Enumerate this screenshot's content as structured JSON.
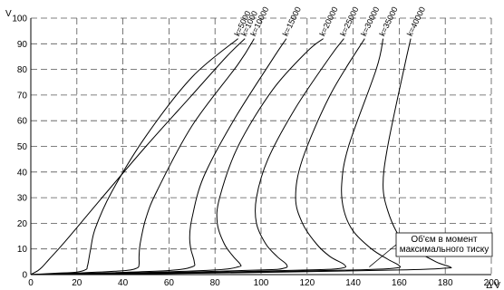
{
  "chart_data": {
    "type": "line",
    "xlabel": "Δ V",
    "ylabel": "V",
    "xlim": [
      0,
      200
    ],
    "ylim": [
      0,
      100
    ],
    "x_ticks": [
      0,
      20,
      40,
      60,
      80,
      100,
      120,
      140,
      160,
      180,
      200
    ],
    "y_ticks": [
      0,
      10,
      20,
      30,
      40,
      50,
      60,
      70,
      80,
      90,
      100
    ],
    "grid": true,
    "annotation": {
      "lines": [
        "Об'єм в момент",
        "максимального тиску"
      ],
      "target": {
        "x": 147,
        "y": 3
      }
    },
    "series": [
      {
        "name": "k=1000",
        "points": [
          [
            0,
            0
          ],
          [
            1,
            0.5
          ],
          [
            3,
            1.5
          ],
          [
            5,
            3
          ],
          [
            8,
            6
          ],
          [
            15,
            13
          ],
          [
            30,
            29
          ],
          [
            50,
            50
          ],
          [
            70,
            70
          ],
          [
            85,
            85
          ],
          [
            93,
            92
          ]
        ]
      },
      {
        "name": "k=5000",
        "points": [
          [
            0,
            0
          ],
          [
            10,
            0.5
          ],
          [
            20,
            1
          ],
          [
            24,
            2
          ],
          [
            24.5,
            3
          ],
          [
            25,
            5
          ],
          [
            26,
            10
          ],
          [
            28,
            18
          ],
          [
            35,
            32
          ],
          [
            50,
            54
          ],
          [
            70,
            77
          ],
          [
            90,
            92
          ]
        ]
      },
      {
        "name": "k=10000",
        "points": [
          [
            0,
            0
          ],
          [
            20,
            0.6
          ],
          [
            40,
            1.5
          ],
          [
            46,
            2.5
          ],
          [
            47,
            4
          ],
          [
            47,
            7
          ],
          [
            47.5,
            12
          ],
          [
            50,
            22
          ],
          [
            55,
            33
          ],
          [
            70,
            58
          ],
          [
            90,
            82
          ],
          [
            97,
            92
          ]
        ]
      },
      {
        "name": "k=15000",
        "points": [
          [
            0,
            0
          ],
          [
            30,
            0.6
          ],
          [
            60,
            1.6
          ],
          [
            70,
            3
          ],
          [
            71,
            5
          ],
          [
            69.5,
            10
          ],
          [
            69,
            15
          ],
          [
            70,
            22
          ],
          [
            75,
            38
          ],
          [
            88,
            60
          ],
          [
            105,
            84
          ],
          [
            111,
            92
          ]
        ]
      },
      {
        "name": "k=20000",
        "points": [
          [
            0,
            0
          ],
          [
            40,
            0.6
          ],
          [
            80,
            1.8
          ],
          [
            90,
            3
          ],
          [
            91,
            4
          ],
          [
            88,
            7
          ],
          [
            84,
            12
          ],
          [
            81,
            20
          ],
          [
            82,
            30
          ],
          [
            90,
            50
          ],
          [
            105,
            72
          ],
          [
            120,
            87
          ],
          [
            127,
            92
          ]
        ]
      },
      {
        "name": "k=25000",
        "points": [
          [
            0,
            0
          ],
          [
            50,
            0.6
          ],
          [
            100,
            1.8
          ],
          [
            110,
            2.5
          ],
          [
            111,
            4
          ],
          [
            107,
            7
          ],
          [
            102,
            12
          ],
          [
            98,
            20
          ],
          [
            98,
            30
          ],
          [
            103,
            45
          ],
          [
            115,
            65
          ],
          [
            130,
            85
          ],
          [
            136,
            92
          ]
        ]
      },
      {
        "name": "k=30000",
        "points": [
          [
            0,
            0
          ],
          [
            60,
            0.6
          ],
          [
            120,
            1.8
          ],
          [
            135,
            2.5
          ],
          [
            136,
            4
          ],
          [
            130,
            7
          ],
          [
            124,
            12
          ],
          [
            118,
            20
          ],
          [
            115,
            30
          ],
          [
            118,
            45
          ],
          [
            130,
            70
          ],
          [
            145,
            92
          ]
        ]
      },
      {
        "name": "k=35000",
        "points": [
          [
            0,
            0
          ],
          [
            70,
            0.6
          ],
          [
            140,
            1.8
          ],
          [
            158,
            2.5
          ],
          [
            160,
            3.5
          ],
          [
            155,
            6
          ],
          [
            148,
            10
          ],
          [
            140,
            17
          ],
          [
            136,
            25
          ],
          [
            135,
            35
          ],
          [
            138,
            50
          ],
          [
            150,
            80
          ],
          [
            153,
            92
          ]
        ]
      },
      {
        "name": "k=40000",
        "points": [
          [
            0,
            0
          ],
          [
            80,
            0.6
          ],
          [
            160,
            1.8
          ],
          [
            180,
            2.5
          ],
          [
            182,
            3
          ],
          [
            176,
            5
          ],
          [
            166,
            10
          ],
          [
            160,
            15
          ],
          [
            155,
            25
          ],
          [
            153,
            35
          ],
          [
            155,
            50
          ],
          [
            162,
            80
          ],
          [
            165,
            92
          ]
        ]
      }
    ]
  }
}
